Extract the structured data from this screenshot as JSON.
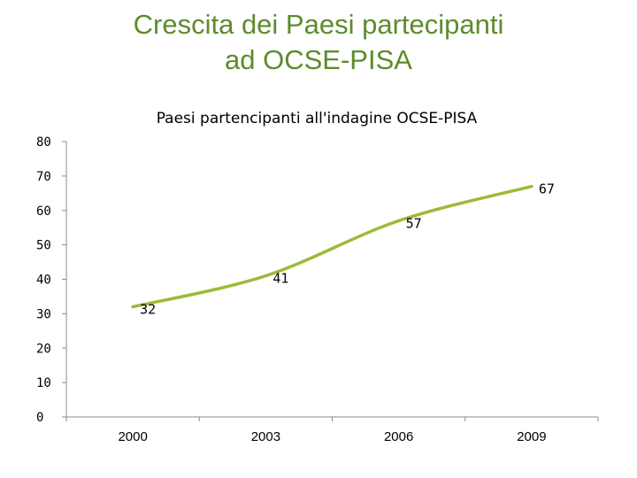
{
  "slide": {
    "title_line1": "Crescita dei Paesi partecipanti",
    "title_line2": "ad OCSE-PISA"
  },
  "colors": {
    "title": "#5e8b2c",
    "line": "#9bbb38",
    "axis": "#8c8c8c"
  },
  "chart_data": {
    "type": "line",
    "title": "Paesi partencipanti all'indagine OCSE-PISA",
    "categories": [
      "2000",
      "2003",
      "2006",
      "2009"
    ],
    "series": [
      {
        "values": [
          32,
          41,
          57,
          67
        ]
      }
    ],
    "ylim": [
      0,
      80
    ],
    "yticks": [
      0,
      10,
      20,
      30,
      40,
      50,
      60,
      70,
      80
    ],
    "grid": false,
    "legend": "none",
    "data_labels": true
  }
}
